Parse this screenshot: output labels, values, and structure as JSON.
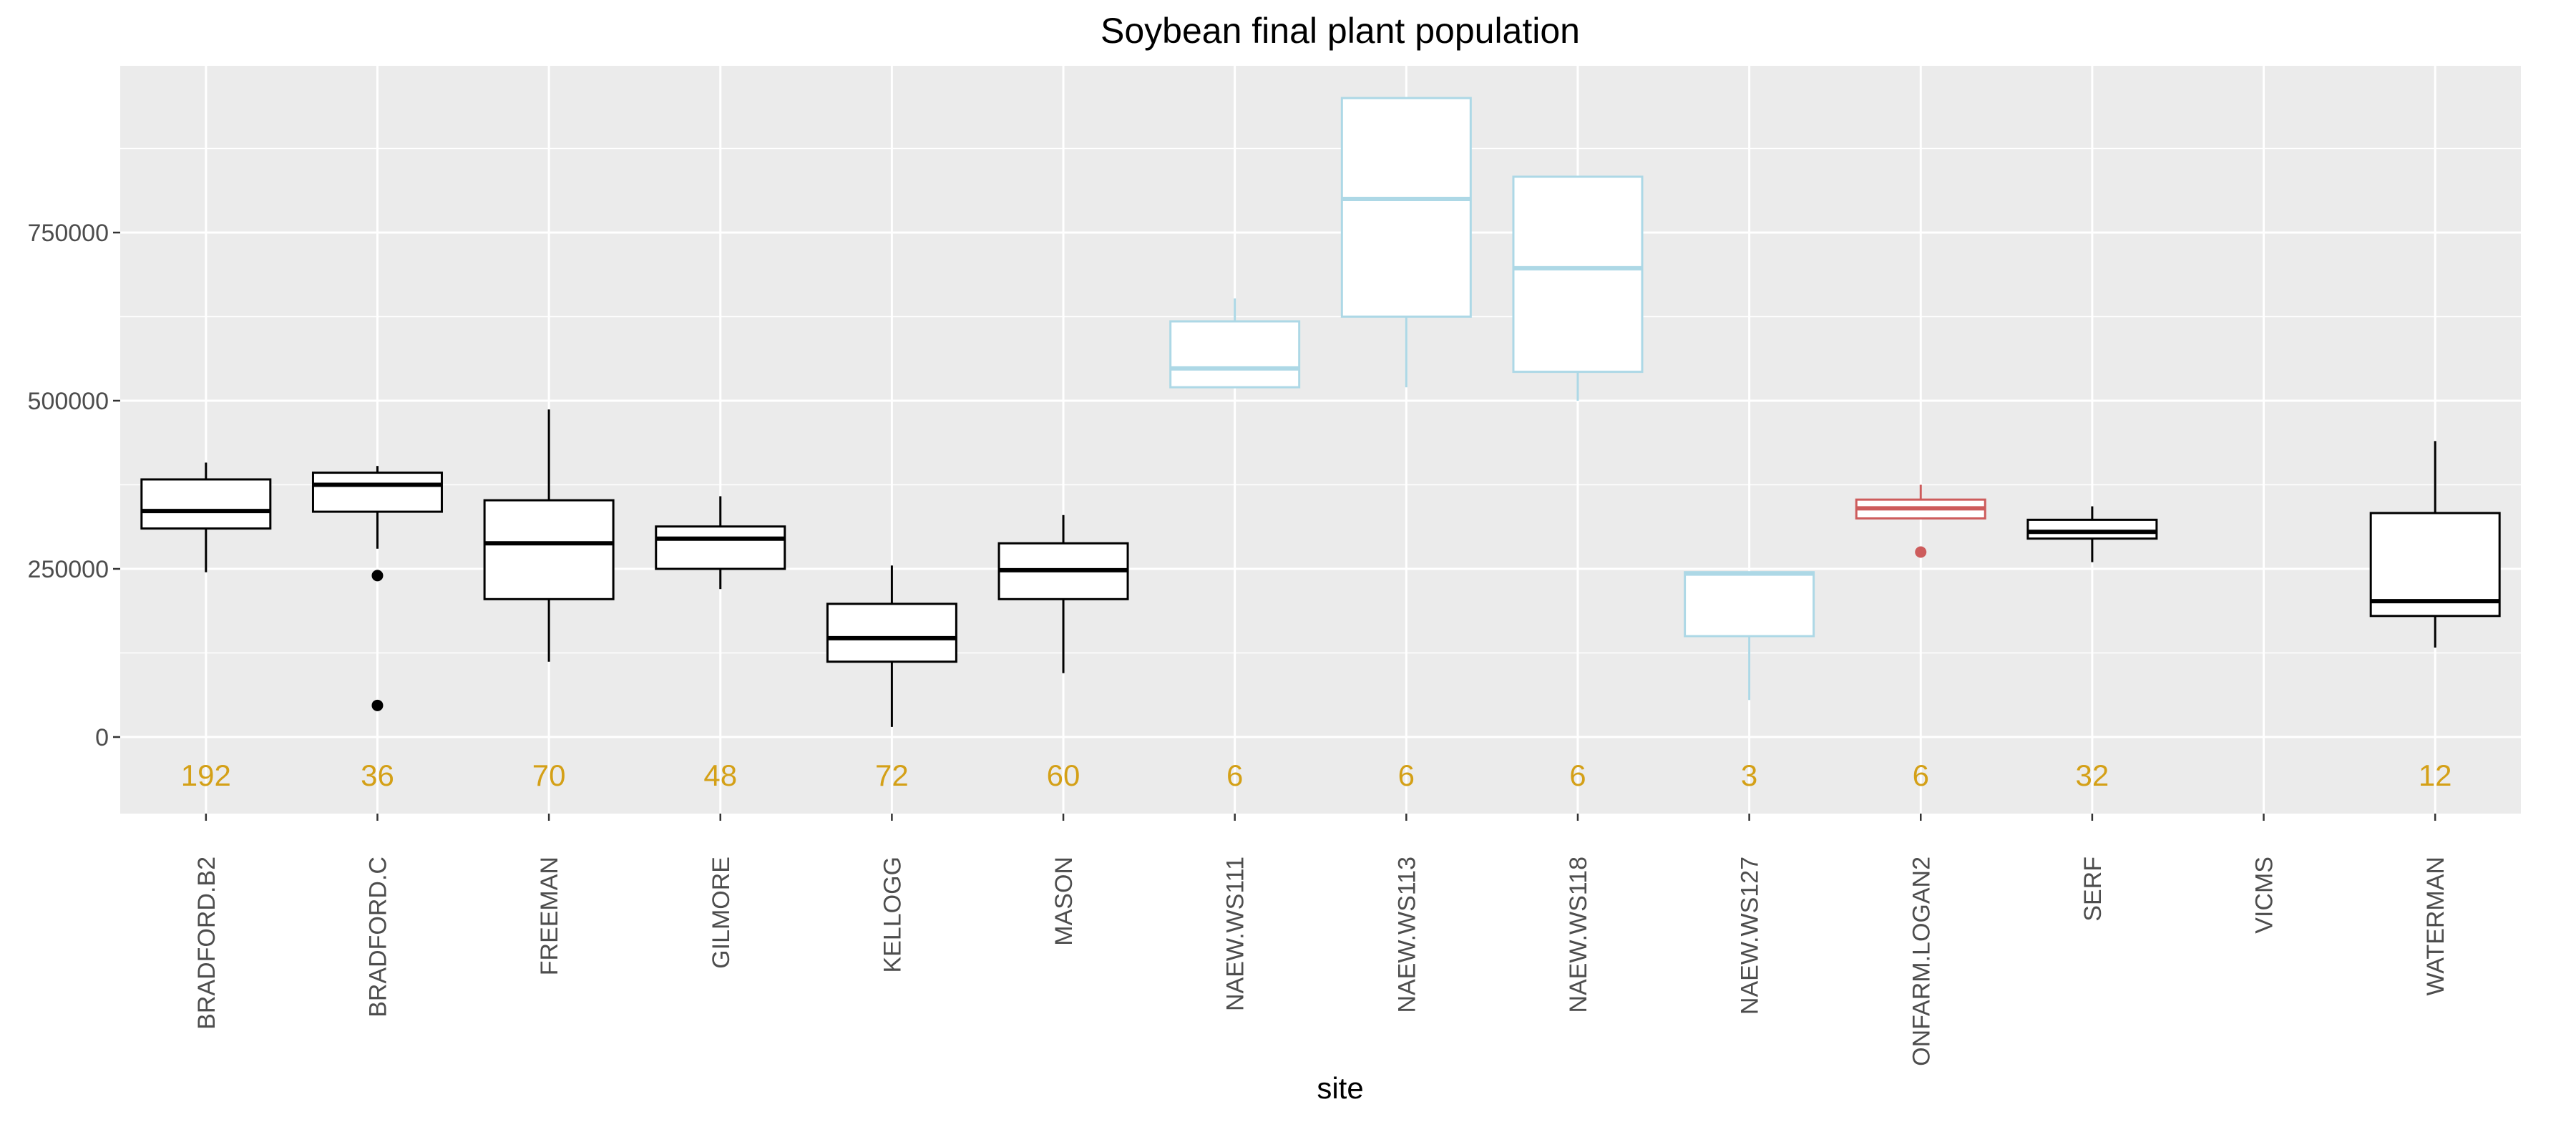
{
  "chart_data": {
    "type": "box",
    "title": "Soybean final plant population",
    "xlabel": "site",
    "ylabel": "",
    "ylim": [
      -115000,
      1000000
    ],
    "yticks": [
      0,
      250000,
      500000,
      750000
    ],
    "ytick_labels": [
      "0",
      "250000",
      "500000",
      "750000"
    ],
    "grid": true,
    "count_color": "#d4a017",
    "colors": {
      "black": "#000000",
      "lightblue": "#add8e6",
      "indianred": "#cd5c5c"
    },
    "categories": [
      "BRADFORD.B2",
      "BRADFORD.C",
      "FREEMAN",
      "GILMORE",
      "KELLOGG",
      "MASON",
      "NAEW.WS111",
      "NAEW.WS113",
      "NAEW.WS118",
      "NAEW.WS127",
      "ONFARM.LOGAN2",
      "SERF",
      "VICMS",
      "WATERMAN"
    ],
    "boxes": [
      {
        "site": "BRADFORD.B2",
        "color": "black",
        "whisker_low": 245000,
        "q1": 310000,
        "median": 336000,
        "q3": 383000,
        "whisker_high": 408000,
        "outliers": [],
        "n": "192"
      },
      {
        "site": "BRADFORD.C",
        "color": "black",
        "whisker_low": 280000,
        "q1": 335000,
        "median": 375000,
        "q3": 393000,
        "whisker_high": 403000,
        "outliers": [
          240000,
          47000
        ],
        "n": "36"
      },
      {
        "site": "FREEMAN",
        "color": "black",
        "whisker_low": 112000,
        "q1": 205000,
        "median": 288000,
        "q3": 352000,
        "whisker_high": 487000,
        "outliers": [],
        "n": "70"
      },
      {
        "site": "GILMORE",
        "color": "black",
        "whisker_low": 220000,
        "q1": 250000,
        "median": 295000,
        "q3": 313000,
        "whisker_high": 358000,
        "outliers": [],
        "n": "48"
      },
      {
        "site": "KELLOGG",
        "color": "black",
        "whisker_low": 15000,
        "q1": 112000,
        "median": 147000,
        "q3": 198000,
        "whisker_high": 255000,
        "outliers": [],
        "n": "72"
      },
      {
        "site": "MASON",
        "color": "black",
        "whisker_low": 95000,
        "q1": 205000,
        "median": 248000,
        "q3": 288000,
        "whisker_high": 330000,
        "outliers": [],
        "n": "60"
      },
      {
        "site": "NAEW.WS111",
        "color": "lightblue",
        "whisker_low": 520000,
        "q1": 520000,
        "median": 548000,
        "q3": 618000,
        "whisker_high": 652000,
        "outliers": [],
        "n": "6"
      },
      {
        "site": "NAEW.WS113",
        "color": "lightblue",
        "whisker_low": 520000,
        "q1": 625000,
        "median": 800000,
        "q3": 950000,
        "whisker_high": 950000,
        "outliers": [],
        "n": "6"
      },
      {
        "site": "NAEW.WS118",
        "color": "lightblue",
        "whisker_low": 500000,
        "q1": 543000,
        "median": 697000,
        "q3": 833000,
        "whisker_high": 833000,
        "outliers": [],
        "n": "6"
      },
      {
        "site": "NAEW.WS127",
        "color": "lightblue",
        "whisker_low": 55000,
        "q1": 150000,
        "median": 243000,
        "q3": 245000,
        "whisker_high": 245000,
        "outliers": [],
        "n": "3"
      },
      {
        "site": "ONFARM.LOGAN2",
        "color": "indianred",
        "whisker_low": 325000,
        "q1": 325000,
        "median": 340000,
        "q3": 353000,
        "whisker_high": 375000,
        "outliers": [
          275000
        ],
        "n": "6"
      },
      {
        "site": "SERF",
        "color": "black",
        "whisker_low": 260000,
        "q1": 295000,
        "median": 305000,
        "q3": 323000,
        "whisker_high": 343000,
        "outliers": [],
        "n": "32"
      },
      {
        "site": "VICMS",
        "color": "black",
        "n": ""
      },
      {
        "site": "WATERMAN",
        "color": "black",
        "whisker_low": 133000,
        "q1": 180000,
        "median": 202000,
        "q3": 333000,
        "whisker_high": 440000,
        "outliers": [],
        "n": "12"
      }
    ]
  }
}
